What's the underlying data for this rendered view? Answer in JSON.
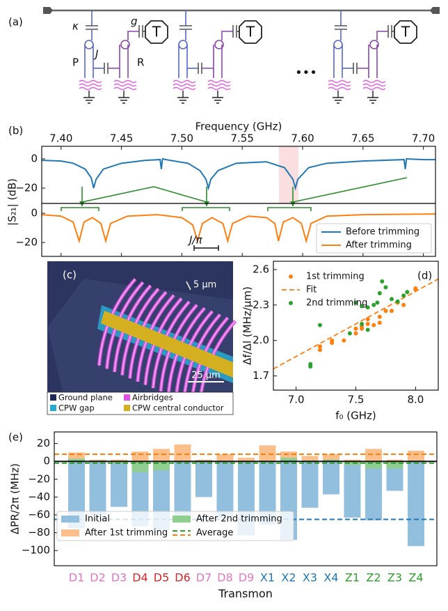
{
  "panel_a": {
    "label": "(a)",
    "kappa": "κ",
    "g": "g",
    "J": "J",
    "P": "P",
    "R": "R",
    "transmon": "T",
    "ellipsis": "•••"
  },
  "panel_c": {
    "label": "(c)",
    "scale_small": "5 μm",
    "scale_large": "25 μm",
    "legend": [
      "Ground plane",
      "Airbridges",
      "CPW gap",
      "CPW central conductor"
    ],
    "legend_colors": [
      "#1e2a55",
      "#e050e8",
      "#2aa9d0",
      "#d4b020"
    ]
  },
  "chart_data": [
    {
      "type": "line",
      "panel_label": "(b)",
      "x_label": "Frequency (GHz)",
      "y_label": "|S₂₁| (dB)",
      "annotation": "J/π",
      "xlim": [
        7.384,
        7.71
      ],
      "xticks": [
        {
          "value": 7.4,
          "label": "7.40"
        },
        {
          "value": 7.45,
          "label": "7.45"
        },
        {
          "value": 7.5,
          "label": "7.50"
        },
        7.55,
        {
          "value": 7.6,
          "label": "7.60"
        },
        7.65,
        {
          "value": 7.7,
          "label": "7.70"
        }
      ],
      "subplots": [
        {
          "ylim": [
            -30.5,
            8.6
          ],
          "yticks": [
            0,
            {
              "value": -20,
              "label": "−20"
            }
          ]
        },
        {
          "ylim": [
            -29.5,
            6.7
          ],
          "yticks": [
            0,
            {
              "value": -20,
              "label": "−20"
            }
          ]
        }
      ],
      "legend": "lower right",
      "series": [
        {
          "name": "Before trimming",
          "color": "#1f77b4",
          "subplot": 0,
          "x": [
            7.384,
            7.4,
            7.41,
            7.42,
            7.425,
            7.427,
            7.429,
            7.435,
            7.45,
            7.47,
            7.482,
            7.483,
            7.484,
            7.49,
            7.505,
            7.515,
            7.52,
            7.522,
            7.524,
            7.53,
            7.545,
            7.57,
            7.585,
            7.592,
            7.594,
            7.596,
            7.605,
            7.62,
            7.65,
            7.684,
            7.685,
            7.686,
            7.7,
            7.71
          ],
          "values": [
            -1,
            -1.5,
            -3,
            -7,
            -13,
            -20,
            -14,
            -7,
            -3,
            -1,
            -0.5,
            -7,
            0,
            -1,
            -3,
            -8,
            -14,
            -20,
            -14,
            -8,
            -3,
            -2,
            -6,
            -14,
            -20,
            -14,
            -6,
            -3,
            -1.5,
            -0.5,
            -7,
            0,
            -0.5,
            -0.5
          ]
        },
        {
          "name": "After trimming",
          "color": "#ff7f0e",
          "subplot": 1,
          "x": [
            7.384,
            7.4,
            7.41,
            7.415,
            7.419,
            7.426,
            7.433,
            7.437,
            7.441,
            7.455,
            7.48,
            7.5,
            7.509,
            7.513,
            7.517,
            7.525,
            7.534,
            7.538,
            7.542,
            7.555,
            7.57,
            7.577,
            7.58,
            7.584,
            7.592,
            7.599,
            7.603,
            7.607,
            7.62,
            7.65,
            7.71
          ],
          "values": [
            -1,
            -2,
            -6,
            -19,
            -6,
            -3,
            -7,
            -19,
            -7,
            -2,
            -1,
            -3,
            -8,
            -19,
            -7,
            -3,
            -7,
            -19,
            -7,
            -2,
            -3,
            -7,
            -19,
            -6,
            -3,
            -7,
            -19,
            -7,
            -2,
            -1,
            -0.5
          ]
        }
      ]
    },
    {
      "type": "scatter",
      "panel_label": "(d)",
      "x_label": "f₀ (GHz)",
      "y_label": "Δf/Δl (MHz/μm)",
      "xlim": [
        6.81,
        8.19
      ],
      "xticks": [
        {
          "value": 7,
          "label": "7.0"
        },
        7.5,
        {
          "value": 8,
          "label": "8.0"
        }
      ],
      "ylim": [
        1.58,
        2.67
      ],
      "yticks": [
        1.7,
        {
          "value": 2,
          "label": "2.0"
        },
        2.3,
        2.6
      ],
      "legend": "upper left",
      "series": [
        {
          "name": "1st trimming",
          "color": "#ff7f0e",
          "kind": "points",
          "x": [
            7.2,
            7.2,
            7.3,
            7.3,
            7.4,
            7.5,
            7.5,
            7.55,
            7.6,
            7.6,
            7.65,
            7.7,
            7.7,
            7.75,
            7.8,
            7.85,
            7.9,
            8.0,
            8.0,
            7.55
          ],
          "values": [
            1.92,
            1.95,
            1.98,
            2.0,
            2.0,
            2.06,
            2.1,
            2.12,
            2.18,
            2.14,
            2.13,
            2.2,
            2.15,
            2.25,
            2.25,
            2.32,
            2.3,
            2.43,
            2.44,
            2.1
          ]
        },
        {
          "name": "Fit",
          "color": "#ff7f0e",
          "kind": "dashed",
          "x": [
            6.81,
            8.19
          ],
          "values": [
            1.76,
            2.52
          ]
        },
        {
          "name": "2nd trimming",
          "color": "#2ca02c",
          "kind": "points",
          "x": [
            7.12,
            7.12,
            7.2,
            7.45,
            7.5,
            7.55,
            7.55,
            7.6,
            7.6,
            7.65,
            7.68,
            7.7,
            7.72,
            7.75,
            7.8,
            7.85,
            7.9,
            7.93
          ],
          "values": [
            1.78,
            1.8,
            2.13,
            2.06,
            2.32,
            2.29,
            2.14,
            2.28,
            2.09,
            2.3,
            2.32,
            2.4,
            2.5,
            2.45,
            2.35,
            2.33,
            2.38,
            2.41
          ]
        }
      ]
    },
    {
      "type": "bar",
      "panel_label": "(e)",
      "x_label": "Transmon",
      "y_label": "ΔPR/2π (MHz)",
      "average_label": "Average",
      "categories": [
        "D1",
        "D2",
        "D3",
        "D4",
        "D5",
        "D6",
        "D7",
        "D8",
        "D9",
        "X1",
        "X2",
        "X3",
        "X4",
        "Z1",
        "Z2",
        "Z3",
        "Z4"
      ],
      "category_colors": [
        "#e377c2",
        "#e377c2",
        "#e377c2",
        "#d62728",
        "#d62728",
        "#d62728",
        "#e377c2",
        "#e377c2",
        "#e377c2",
        "#1f77b4",
        "#1f77b4",
        "#1f77b4",
        "#1f77b4",
        "#2ca02c",
        "#2ca02c",
        "#2ca02c",
        "#2ca02c"
      ],
      "ylim": [
        -117,
        33
      ],
      "yticks": [
        20,
        0,
        {
          "value": -20,
          "label": "−20"
        },
        {
          "value": -40,
          "label": "−40"
        },
        {
          "value": -60,
          "label": "−60"
        },
        {
          "value": -80,
          "label": "−80"
        },
        {
          "value": -100,
          "label": "−100"
        }
      ],
      "legend": "lower left",
      "series": [
        {
          "name": "Initial",
          "color": "#93bfdf",
          "average": -65,
          "average_color": "#1f77b4",
          "values": [
            -75,
            -60,
            -51,
            -73,
            -77,
            -66,
            -40,
            -63,
            -83,
            -71,
            -88,
            -52,
            -37,
            -63,
            -66,
            -33,
            -95
          ]
        },
        {
          "name": "After 1st trimming",
          "color": "#fbbf8c",
          "average": 8,
          "average_color": "#ff7f0e",
          "values": [
            10,
            2,
            2,
            11,
            14,
            19,
            2,
            8,
            4,
            18,
            11,
            6,
            8,
            2,
            14,
            2,
            12
          ]
        },
        {
          "name": "After 2nd trimming",
          "color": "#8fce8f",
          "average": -2,
          "average_color": "#2ca02c",
          "values": [
            3,
            1,
            -2,
            -12,
            -10,
            0,
            1,
            0,
            0,
            0,
            4,
            1,
            2,
            -4,
            -8,
            -8,
            1
          ]
        }
      ]
    }
  ]
}
